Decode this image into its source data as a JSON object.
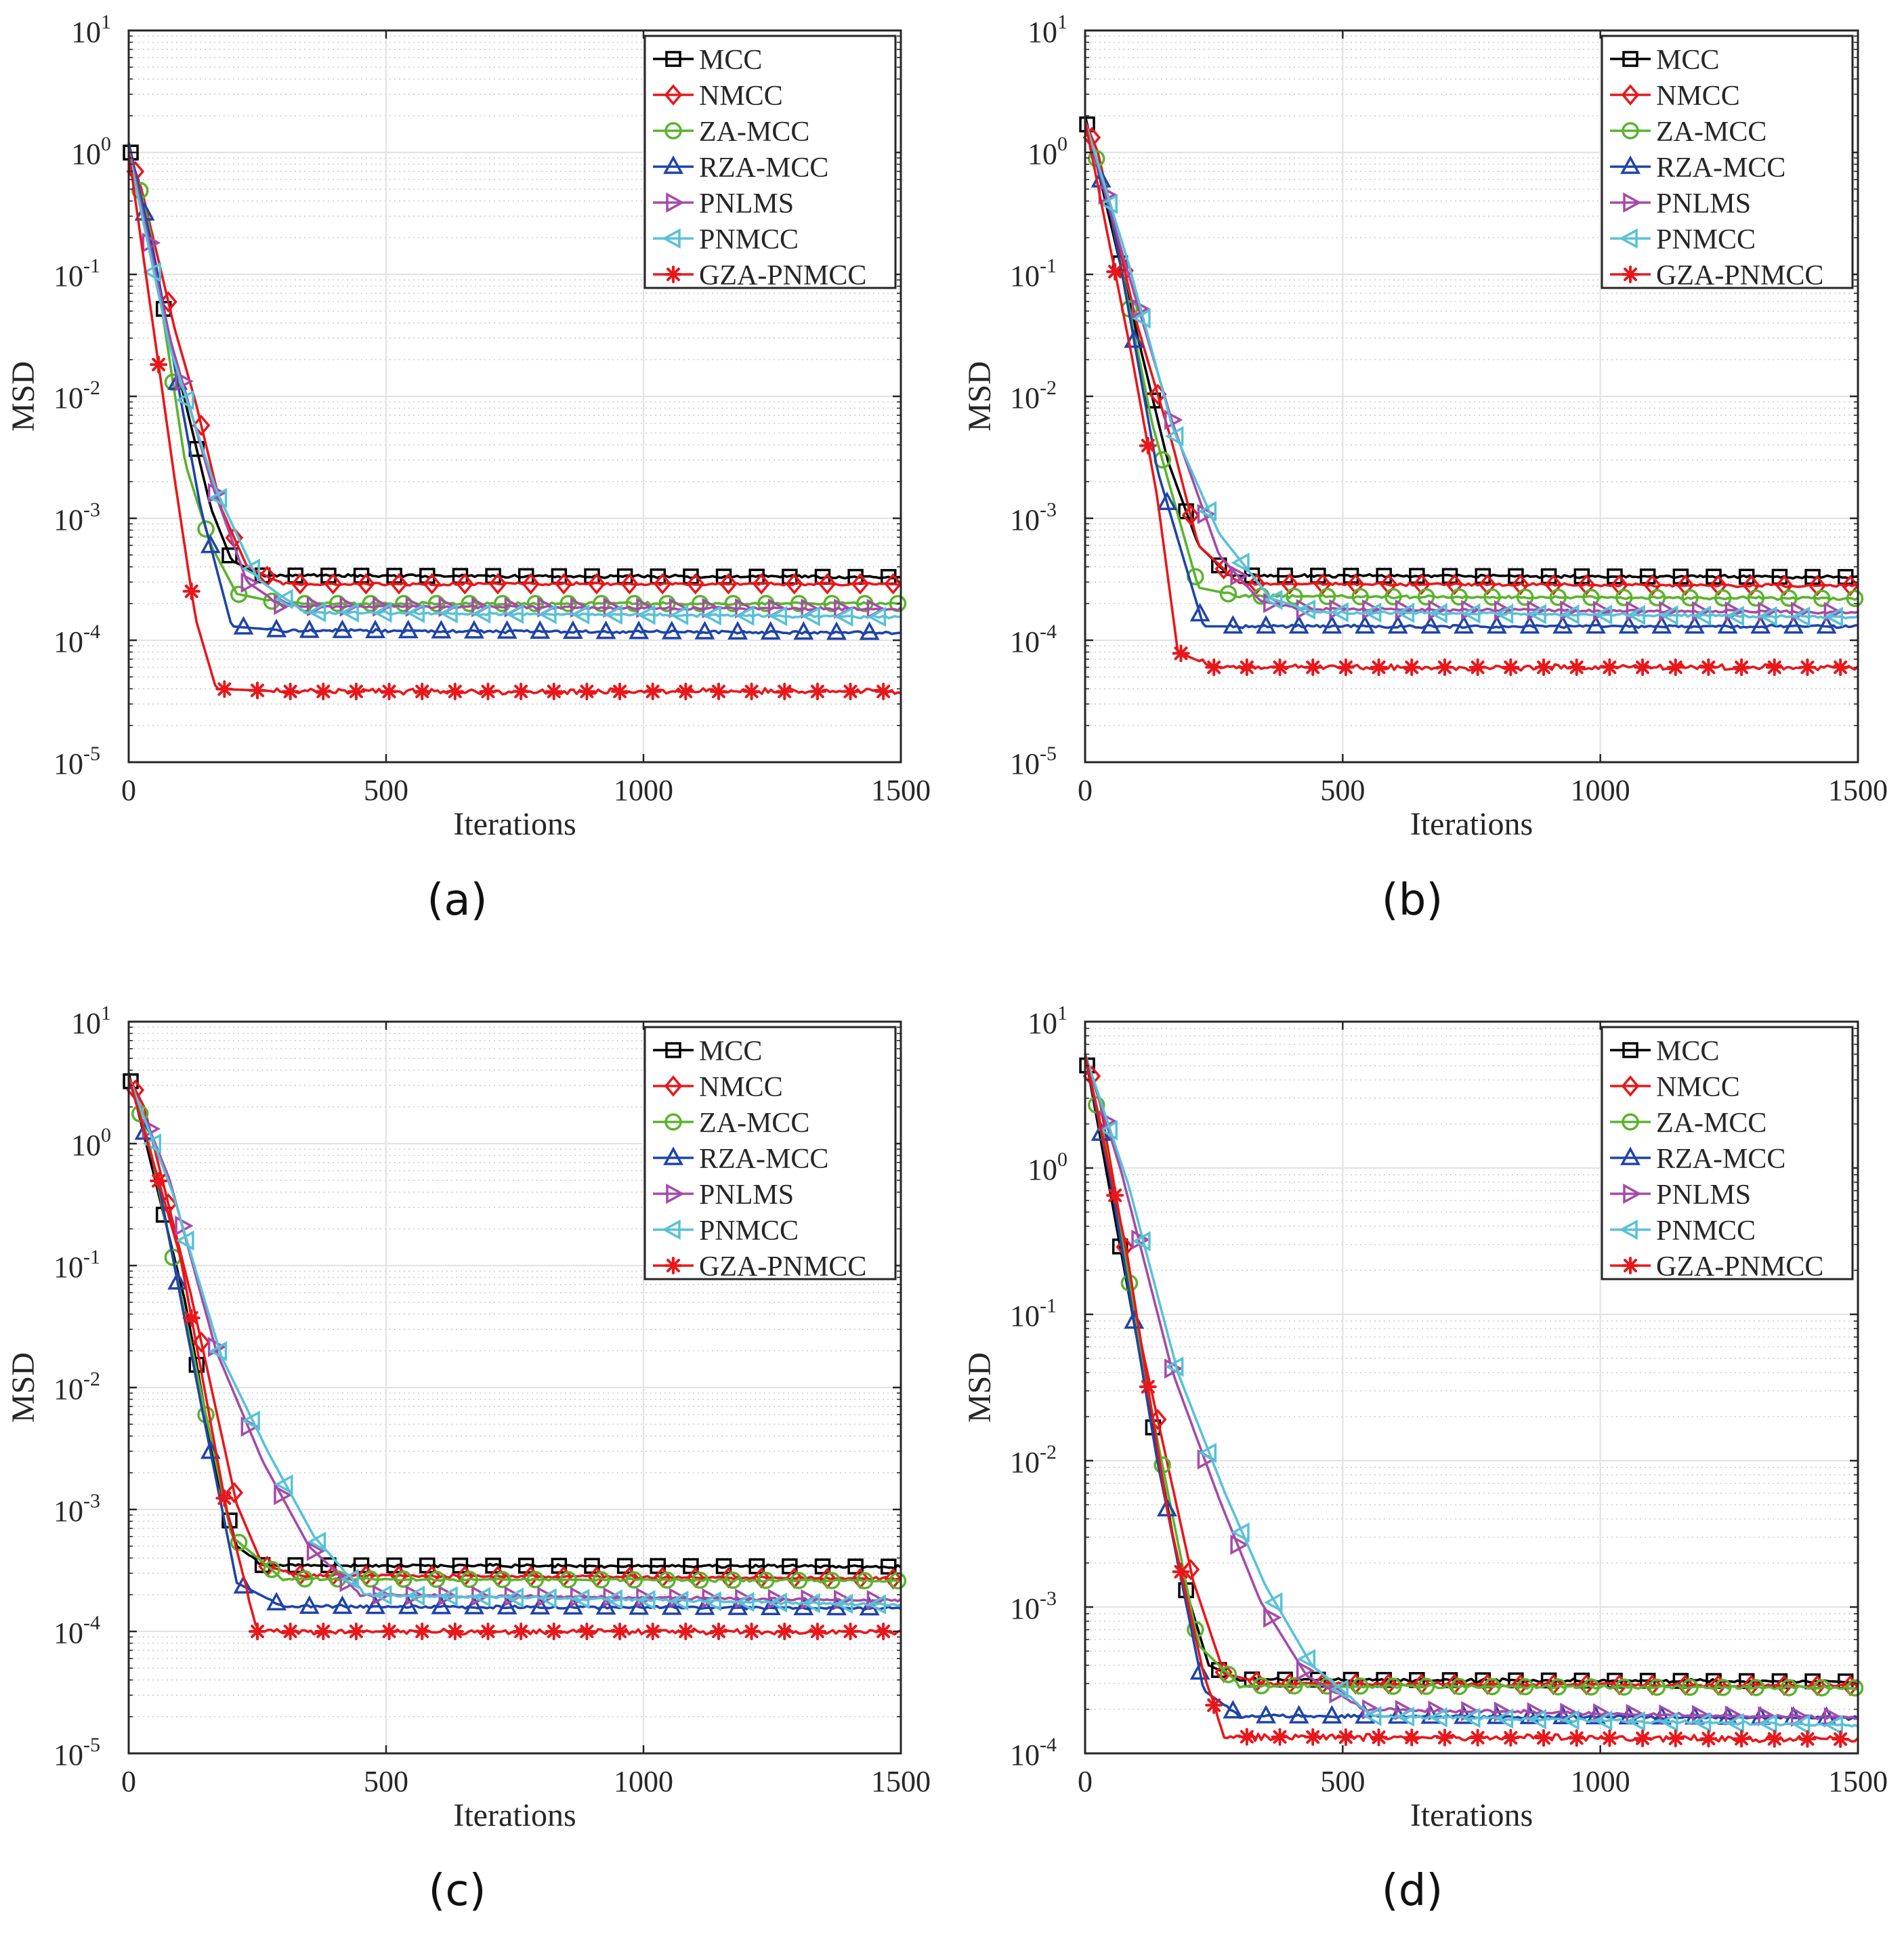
{
  "figure": {
    "xlabel": "Iterations",
    "ylabel": "MSD",
    "legend_placement": "top-right"
  },
  "series_styles": [
    {
      "name": "MCC",
      "color": "#000000",
      "marker": "square"
    },
    {
      "name": "NMCC",
      "color": "#e8171b",
      "marker": "diamond"
    },
    {
      "name": "ZA-MCC",
      "color": "#5ab32e",
      "marker": "circle"
    },
    {
      "name": "RZA-MCC",
      "color": "#1f44a8",
      "marker": "triangle-up"
    },
    {
      "name": "PNLMS",
      "color": "#a54aa8",
      "marker": "triangle-right"
    },
    {
      "name": "PNMCC",
      "color": "#58c1d6",
      "marker": "triangle-left"
    },
    {
      "name": "GZA-PNMCC",
      "color": "#e8171b",
      "marker": "asterisk"
    }
  ],
  "chart_data": [
    {
      "type": "line",
      "caption": "(a)",
      "title": "",
      "xlabel": "Iterations",
      "ylabel": "MSD",
      "xlim": [
        0,
        1500
      ],
      "ylim_exp": [
        -5,
        1
      ],
      "yscale": "log",
      "grid": true,
      "xticks": [
        "0",
        "500",
        "1000",
        "1500"
      ],
      "yticks": [
        {
          "base": "10",
          "exp": "1"
        },
        {
          "base": "10",
          "exp": "0"
        },
        {
          "base": "10",
          "exp": "-1"
        },
        {
          "base": "10",
          "exp": "-2"
        },
        {
          "base": "10",
          "exp": "-3"
        },
        {
          "base": "10",
          "exp": "-4"
        },
        {
          "base": "10",
          "exp": "-5"
        }
      ],
      "series": [
        {
          "name": "MCC",
          "points": [
            [
              0,
              1.2
            ],
            [
              80,
              0.03
            ],
            [
              160,
              0.0012
            ],
            [
              200,
              0.00045
            ],
            [
              260,
              0.00034
            ],
            [
              1500,
              0.00033
            ]
          ]
        },
        {
          "name": "NMCC",
          "points": [
            [
              0,
              1.0
            ],
            [
              25,
              0.5
            ],
            [
              90,
              0.035
            ],
            [
              130,
              0.009
            ],
            [
              180,
              0.0012
            ],
            [
              230,
              0.0004
            ],
            [
              300,
              0.00029
            ],
            [
              1500,
              0.00029
            ]
          ]
        },
        {
          "name": "ZA-MCC",
          "points": [
            [
              0,
              1.1
            ],
            [
              40,
              0.25
            ],
            [
              110,
              0.0028
            ],
            [
              160,
              0.0006
            ],
            [
              210,
              0.00024
            ],
            [
              300,
              0.0002
            ],
            [
              1500,
              0.0002
            ]
          ]
        },
        {
          "name": "RZA-MCC",
          "points": [
            [
              0,
              1.2
            ],
            [
              50,
              0.14
            ],
            [
              140,
              0.0012
            ],
            [
              200,
              0.00013
            ],
            [
              300,
              0.00012
            ],
            [
              1500,
              0.000115
            ]
          ]
        },
        {
          "name": "PNLMS",
          "points": [
            [
              0,
              1.1
            ],
            [
              80,
              0.03
            ],
            [
              160,
              0.002
            ],
            [
              230,
              0.0003
            ],
            [
              300,
              0.00019
            ],
            [
              1500,
              0.00018
            ]
          ]
        },
        {
          "name": "PNMCC",
          "points": [
            [
              0,
              1.0
            ],
            [
              80,
              0.025
            ],
            [
              170,
              0.0017
            ],
            [
              250,
              0.00032
            ],
            [
              340,
              0.00017
            ],
            [
              1500,
              0.000155
            ]
          ]
        },
        {
          "name": "GZA-PNMCC",
          "points": [
            [
              0,
              1.0
            ],
            [
              90,
              0.002
            ],
            [
              130,
              0.00015
            ],
            [
              170,
              4e-05
            ],
            [
              300,
              3.8e-05
            ],
            [
              1500,
              3.8e-05
            ]
          ]
        }
      ]
    },
    {
      "type": "line",
      "caption": "(b)",
      "title": "",
      "xlabel": "Iterations",
      "ylabel": "MSD",
      "xlim": [
        0,
        1500
      ],
      "ylim_exp": [
        -5,
        1
      ],
      "yscale": "log",
      "grid": true,
      "xticks": [
        "0",
        "500",
        "1000",
        "1500"
      ],
      "yticks": [
        {
          "base": "10",
          "exp": "1"
        },
        {
          "base": "10",
          "exp": "0"
        },
        {
          "base": "10",
          "exp": "-1"
        },
        {
          "base": "10",
          "exp": "-2"
        },
        {
          "base": "10",
          "exp": "-3"
        },
        {
          "base": "10",
          "exp": "-4"
        },
        {
          "base": "10",
          "exp": "-5"
        }
      ],
      "series": [
        {
          "name": "MCC",
          "points": [
            [
              0,
              2.0
            ],
            [
              90,
              0.05
            ],
            [
              160,
              0.003
            ],
            [
              220,
              0.0006
            ],
            [
              280,
              0.00034
            ],
            [
              1500,
              0.00033
            ]
          ]
        },
        {
          "name": "NMCC",
          "points": [
            [
              0,
              1.8
            ],
            [
              25,
              1.0
            ],
            [
              100,
              0.04
            ],
            [
              170,
              0.004
            ],
            [
              220,
              0.0006
            ],
            [
              300,
              0.00029
            ],
            [
              1500,
              0.00028
            ]
          ]
        },
        {
          "name": "ZA-MCC",
          "points": [
            [
              0,
              1.8
            ],
            [
              40,
              0.5
            ],
            [
              130,
              0.006
            ],
            [
              220,
              0.00027
            ],
            [
              300,
              0.00023
            ],
            [
              1500,
              0.00022
            ]
          ]
        },
        {
          "name": "RZA-MCC",
          "points": [
            [
              0,
              1.8
            ],
            [
              55,
              0.25
            ],
            [
              140,
              0.0025
            ],
            [
              230,
              0.00013
            ],
            [
              300,
              0.00013
            ],
            [
              1500,
              0.00013
            ]
          ]
        },
        {
          "name": "PNLMS",
          "points": [
            [
              0,
              1.8
            ],
            [
              70,
              0.16
            ],
            [
              170,
              0.006
            ],
            [
              260,
              0.0005
            ],
            [
              340,
              0.00021
            ],
            [
              420,
              0.00018
            ],
            [
              1500,
              0.00017
            ]
          ]
        },
        {
          "name": "PNMCC",
          "points": [
            [
              0,
              1.8
            ],
            [
              85,
              0.12
            ],
            [
              170,
              0.0055
            ],
            [
              260,
              0.00075
            ],
            [
              360,
              0.00022
            ],
            [
              450,
              0.00017
            ],
            [
              1500,
              0.000155
            ]
          ]
        },
        {
          "name": "GZA-PNMCC",
          "points": [
            [
              0,
              1.8
            ],
            [
              90,
              0.022
            ],
            [
              140,
              0.0015
            ],
            [
              180,
              8e-05
            ],
            [
              250,
              6e-05
            ],
            [
              1500,
              6e-05
            ]
          ]
        }
      ]
    },
    {
      "type": "line",
      "caption": "(c)",
      "title": "",
      "xlabel": "Iterations",
      "ylabel": "MSD",
      "xlim": [
        0,
        1500
      ],
      "ylim_exp": [
        -5,
        1
      ],
      "yscale": "log",
      "grid": true,
      "xticks": [
        "0",
        "500",
        "1000",
        "1500"
      ],
      "yticks": [
        {
          "base": "10",
          "exp": "1"
        },
        {
          "base": "10",
          "exp": "0"
        },
        {
          "base": "10",
          "exp": "-1"
        },
        {
          "base": "10",
          "exp": "-2"
        },
        {
          "base": "10",
          "exp": "-3"
        },
        {
          "base": "10",
          "exp": "-4"
        },
        {
          "base": "10",
          "exp": "-5"
        }
      ],
      "series": [
        {
          "name": "MCC",
          "points": [
            [
              0,
              3.8
            ],
            [
              110,
              0.05
            ],
            [
              170,
              0.002
            ],
            [
              210,
              0.0005
            ],
            [
              260,
              0.00035
            ],
            [
              1500,
              0.00034
            ]
          ]
        },
        {
          "name": "NMCC",
          "points": [
            [
              0,
              3.5
            ],
            [
              30,
              2.0
            ],
            [
              120,
              0.06
            ],
            [
              210,
              0.0011
            ],
            [
              260,
              0.00035
            ],
            [
              330,
              0.00029
            ],
            [
              1500,
              0.00027
            ]
          ]
        },
        {
          "name": "ZA-MCC",
          "points": [
            [
              0,
              3.5
            ],
            [
              40,
              1.0
            ],
            [
              130,
              0.015
            ],
            [
              200,
              0.0006
            ],
            [
              300,
              0.00027
            ],
            [
              1500,
              0.00026
            ]
          ]
        },
        {
          "name": "RZA-MCC",
          "points": [
            [
              0,
              3.5
            ],
            [
              55,
              0.55
            ],
            [
              140,
              0.0075
            ],
            [
              210,
              0.00025
            ],
            [
              300,
              0.00016
            ],
            [
              1500,
              0.000155
            ]
          ]
        },
        {
          "name": "PNLMS",
          "points": [
            [
              0,
              3.5
            ],
            [
              80,
              0.5
            ],
            [
              170,
              0.02
            ],
            [
              260,
              0.0025
            ],
            [
              350,
              0.0005
            ],
            [
              450,
              0.0002
            ],
            [
              1500,
              0.00018
            ]
          ]
        },
        {
          "name": "PNMCC",
          "points": [
            [
              0,
              3.5
            ],
            [
              85,
              0.4
            ],
            [
              180,
              0.018
            ],
            [
              270,
              0.003
            ],
            [
              360,
              0.0006
            ],
            [
              460,
              0.0002
            ],
            [
              1500,
              0.000165
            ]
          ]
        },
        {
          "name": "GZA-PNMCC",
          "points": [
            [
              0,
              3.5
            ],
            [
              100,
              0.12
            ],
            [
              190,
              0.001
            ],
            [
              250,
              0.0001
            ],
            [
              1500,
              0.0001
            ]
          ]
        }
      ]
    },
    {
      "type": "line",
      "caption": "(d)",
      "title": "",
      "xlabel": "Iterations",
      "ylabel": "MSD",
      "xlim": [
        0,
        1500
      ],
      "ylim_exp": [
        -4,
        1
      ],
      "yscale": "log",
      "grid": true,
      "xticks": [
        "0",
        "500",
        "1000",
        "1500"
      ],
      "yticks": [
        {
          "base": "10",
          "exp": "1"
        },
        {
          "base": "10",
          "exp": "0"
        },
        {
          "base": "10",
          "exp": "-1"
        },
        {
          "base": "10",
          "exp": "-2"
        },
        {
          "base": "10",
          "exp": "-3"
        },
        {
          "base": "10",
          "exp": "-4"
        }
      ],
      "series": [
        {
          "name": "MCC",
          "points": [
            [
              0,
              6.0
            ],
            [
              100,
              0.07
            ],
            [
              180,
              0.002
            ],
            [
              240,
              0.0004
            ],
            [
              300,
              0.00032
            ],
            [
              1500,
              0.00031
            ]
          ]
        },
        {
          "name": "NMCC",
          "points": [
            [
              0,
              6.0
            ],
            [
              30,
              2.7
            ],
            [
              110,
              0.06
            ],
            [
              210,
              0.0015
            ],
            [
              270,
              0.00035
            ],
            [
              350,
              0.0003
            ],
            [
              1500,
              0.00029
            ]
          ]
        },
        {
          "name": "ZA-MCC",
          "points": [
            [
              0,
              6.0
            ],
            [
              40,
              1.4
            ],
            [
              130,
              0.021
            ],
            [
              220,
              0.00055
            ],
            [
              300,
              0.00029
            ],
            [
              1500,
              0.00028
            ]
          ]
        },
        {
          "name": "RZA-MCC",
          "points": [
            [
              0,
              6.0
            ],
            [
              50,
              0.8
            ],
            [
              140,
              0.01
            ],
            [
              230,
              0.00027
            ],
            [
              300,
              0.00018
            ],
            [
              1500,
              0.000175
            ]
          ]
        },
        {
          "name": "PNLMS",
          "points": [
            [
              0,
              6.0
            ],
            [
              70,
              0.95
            ],
            [
              170,
              0.04
            ],
            [
              260,
              0.0055
            ],
            [
              340,
              0.0011
            ],
            [
              430,
              0.00034
            ],
            [
              540,
              0.0002
            ],
            [
              1500,
              0.000175
            ]
          ]
        },
        {
          "name": "PNMCC",
          "points": [
            [
              0,
              6.0
            ],
            [
              85,
              0.75
            ],
            [
              180,
              0.04
            ],
            [
              270,
              0.0062
            ],
            [
              350,
              0.0014
            ],
            [
              440,
              0.0004
            ],
            [
              560,
              0.00018
            ],
            [
              1500,
              0.000155
            ]
          ]
        },
        {
          "name": "GZA-PNMCC",
          "points": [
            [
              0,
              6.0
            ],
            [
              80,
              0.28
            ],
            [
              160,
              0.0045
            ],
            [
              230,
              0.00035
            ],
            [
              270,
              0.00013
            ],
            [
              1500,
              0.000125
            ]
          ]
        }
      ]
    }
  ]
}
